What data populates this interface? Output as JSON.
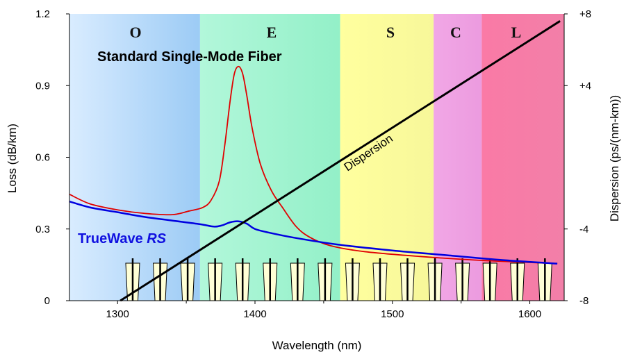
{
  "chart_data": {
    "type": "line",
    "title": "",
    "xlabel": "Wavelength (nm)",
    "ylabel": "Loss (dB/km)",
    "y2label": "Dispersion (ps/(nm-km))",
    "xlim": [
      1265,
      1625
    ],
    "ylim": [
      0,
      1.2
    ],
    "y2lim": [
      -8,
      8
    ],
    "x_ticks": [
      1300,
      1400,
      1500,
      1600
    ],
    "y_ticks": [
      {
        "v": 0,
        "label": "0"
      },
      {
        "v": 0.3,
        "label": "0.3"
      },
      {
        "v": 0.6,
        "label": "0.6"
      },
      {
        "v": 0.9,
        "label": "0.9"
      },
      {
        "v": 1.2,
        "label": "1.2"
      }
    ],
    "y2_ticks": [
      {
        "v": -8,
        "label": "-8"
      },
      {
        "v": -4,
        "label": "-4"
      },
      {
        "v": 4,
        "label": "+4"
      },
      {
        "v": 8,
        "label": "+8"
      }
    ],
    "bands": [
      {
        "name": "O",
        "start": 1265,
        "end": 1360,
        "color_left": "#d9ecff",
        "color_right": "#9ccbf5"
      },
      {
        "name": "E",
        "start": 1360,
        "end": 1462,
        "color_left": "#b2f7da",
        "color_right": "#93f0c8"
      },
      {
        "name": "S",
        "start": 1462,
        "end": 1530,
        "color_left": "#ffff9e",
        "color_right": "#f7f79a"
      },
      {
        "name": "C",
        "start": 1530,
        "end": 1565,
        "color_left": "#f1a7e6",
        "color_right": "#ec9bdf"
      },
      {
        "name": "L",
        "start": 1565,
        "end": 1625,
        "color_left": "#fa7aa6",
        "color_right": "#f27fa8"
      }
    ],
    "series": [
      {
        "name": "Standard Single-Mode Fiber",
        "color": "#e00000",
        "axis": "left",
        "x": [
          1265,
          1280,
          1300,
          1320,
          1340,
          1352,
          1362,
          1368,
          1374,
          1378,
          1382,
          1385,
          1388,
          1391,
          1394,
          1398,
          1404,
          1412,
          1420,
          1430,
          1440,
          1455,
          1480,
          1520,
          1560,
          1600,
          1620
        ],
        "y": [
          0.445,
          0.405,
          0.38,
          0.365,
          0.36,
          0.375,
          0.39,
          0.42,
          0.5,
          0.65,
          0.84,
          0.95,
          0.98,
          0.95,
          0.86,
          0.72,
          0.57,
          0.46,
          0.39,
          0.31,
          0.265,
          0.23,
          0.205,
          0.185,
          0.17,
          0.16,
          0.155
        ]
      },
      {
        "name": "TrueWave RS",
        "color": "#0000e0",
        "axis": "left",
        "x": [
          1265,
          1280,
          1300,
          1320,
          1340,
          1360,
          1370,
          1376,
          1382,
          1388,
          1394,
          1400,
          1410,
          1430,
          1460,
          1500,
          1540,
          1580,
          1620
        ],
        "y": [
          0.415,
          0.39,
          0.37,
          0.35,
          0.335,
          0.32,
          0.31,
          0.315,
          0.328,
          0.332,
          0.322,
          0.3,
          0.285,
          0.262,
          0.235,
          0.21,
          0.19,
          0.17,
          0.155
        ]
      },
      {
        "name": "Dispersion",
        "color": "#000000",
        "axis": "right",
        "x": [
          1302,
          1622
        ],
        "y": [
          -8,
          7.6
        ]
      }
    ],
    "channels": {
      "start": 1311,
      "spacing": 20,
      "count": 16
    }
  },
  "labels": {
    "band_o": "O",
    "band_e": "E",
    "band_s": "S",
    "band_c": "C",
    "band_l": "L",
    "ssmf": "Standard Single-Mode Fiber",
    "truewave_main": "TrueWave ",
    "truewave_italic": "RS",
    "dispersion": "Dispersion"
  }
}
